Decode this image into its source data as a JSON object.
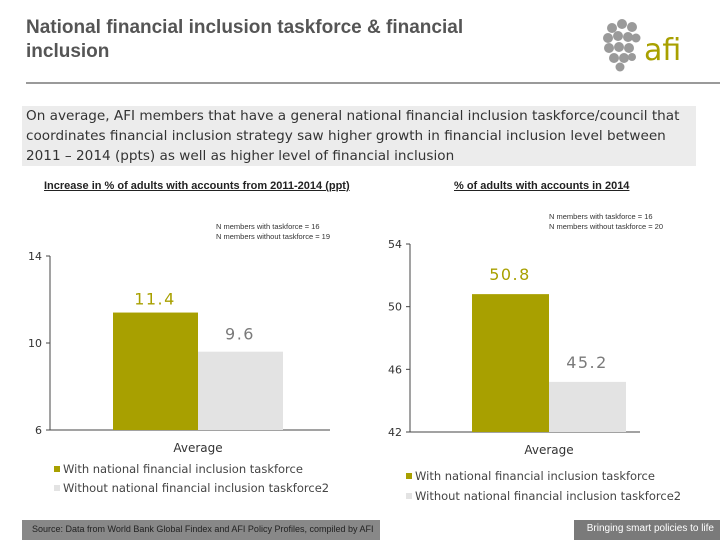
{
  "slide": {
    "title": "National financial inclusion taskforce & financial inclusion",
    "logo_text": "afi",
    "intro": "On average, AFI members that have a general national financial inclusion taskforce/council that coordinates financial inclusion strategy saw higher growth in financial inclusion level between 2011 – 2014 (ppts) as well as higher level of financial inclusion",
    "source": "Source: Data from World Bank Global Findex and AFI Policy Profiles, compiled by AFI",
    "tagline": "Bringing smart policies to life"
  },
  "colors": {
    "with": "#a8a000",
    "without": "#e3e3e3",
    "axis": "#444444",
    "value_text": "#7a7a7a"
  },
  "chart_data": [
    {
      "type": "bar",
      "title": "Increase in % of adults with accounts from 2011-2014 (ppt)",
      "note": [
        "N members with taskforce = 16",
        "N members without taskforce = 19"
      ],
      "categories": [
        "Average"
      ],
      "series": [
        {
          "name": "With national financial inclusion taskforce",
          "values": [
            11.4
          ]
        },
        {
          "name": "Without national financial inclusion taskforce2",
          "values": [
            9.6
          ]
        }
      ],
      "ylim": [
        6,
        14
      ],
      "yticks": [
        6,
        10,
        14
      ],
      "value_labels": [
        "11.4",
        "9.6"
      ],
      "legend": "bottom"
    },
    {
      "type": "bar",
      "title": "% of adults with accounts in 2014",
      "note": [
        "N members with taskforce = 16",
        "N members without taskforce = 20"
      ],
      "categories": [
        "Average"
      ],
      "series": [
        {
          "name": "With national financial inclusion taskforce",
          "values": [
            50.8
          ]
        },
        {
          "name": "Without national financial inclusion taskforce2",
          "values": [
            45.2
          ]
        }
      ],
      "ylim": [
        42,
        54
      ],
      "yticks": [
        42,
        46,
        50,
        54
      ],
      "value_labels": [
        "50.8",
        "45.2"
      ],
      "legend": "bottom"
    }
  ]
}
